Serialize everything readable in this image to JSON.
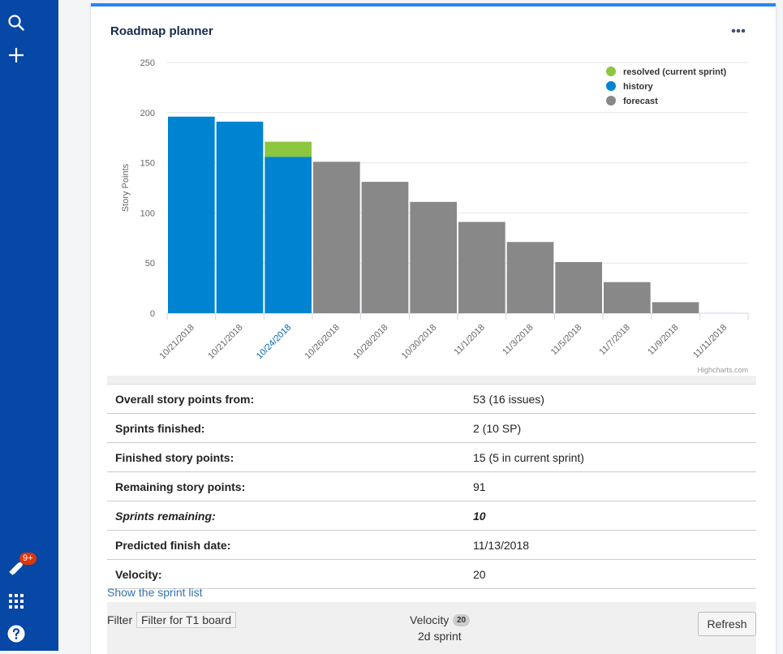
{
  "panel": {
    "title": "Roadmap planner"
  },
  "nav": {
    "icons": [
      "search-icon",
      "plus-icon",
      "notifications-icon",
      "app-switcher-icon",
      "help-icon"
    ],
    "notification_badge": "9+"
  },
  "chart_data": {
    "type": "bar",
    "stacked": true,
    "categories": [
      "10/21/2018",
      "10/21/2018",
      "10/24/2018",
      "10/26/2018",
      "10/28/2018",
      "10/30/2018",
      "11/1/2018",
      "11/3/2018",
      "11/5/2018",
      "11/7/2018",
      "11/9/2018",
      "11/11/2018"
    ],
    "highlighted_category_index": 2,
    "series": [
      {
        "name": "history",
        "color": "#0084d1",
        "values": [
          196,
          191,
          156,
          0,
          0,
          0,
          0,
          0,
          0,
          0,
          0,
          0
        ]
      },
      {
        "name": "resolved (current sprint)",
        "color": "#8dc63f",
        "values": [
          0,
          0,
          15,
          0,
          0,
          0,
          0,
          0,
          0,
          0,
          0,
          0
        ]
      },
      {
        "name": "forecast",
        "color": "#888888",
        "values": [
          0,
          0,
          0,
          151,
          131,
          111,
          91,
          71,
          51,
          31,
          11,
          0
        ]
      }
    ],
    "legend_order": [
      "resolved (current sprint)",
      "history",
      "forecast"
    ],
    "legend_position": "top-right",
    "ylabel": "Story Points",
    "xlabel": "",
    "ylim": [
      0,
      250
    ],
    "yticks": [
      0,
      50,
      100,
      150,
      200,
      250
    ],
    "grid": true,
    "credits": "Highcharts.com"
  },
  "stats": [
    {
      "label": "Overall story points from:",
      "value": "53 (16 issues)"
    },
    {
      "label": "Sprints finished:",
      "value": "2 (10 SP)"
    },
    {
      "label": "Finished story points:",
      "value": "15 (5 in current sprint)"
    },
    {
      "label": "Remaining story points:",
      "value": "91"
    },
    {
      "label": "Sprints remaining:",
      "value": "10"
    },
    {
      "label": "Predicted finish date:",
      "value": "11/13/2018"
    },
    {
      "label": "Velocity:",
      "value": "20"
    }
  ],
  "links": {
    "show_sprint_list": "Show the sprint list"
  },
  "footer": {
    "filter_label": "Filter",
    "filter_value": "Filter for T1 board",
    "velocity_label": "Velocity",
    "velocity_badge": "20",
    "velocity_sub": "2d sprint",
    "refresh_label": "Refresh"
  }
}
